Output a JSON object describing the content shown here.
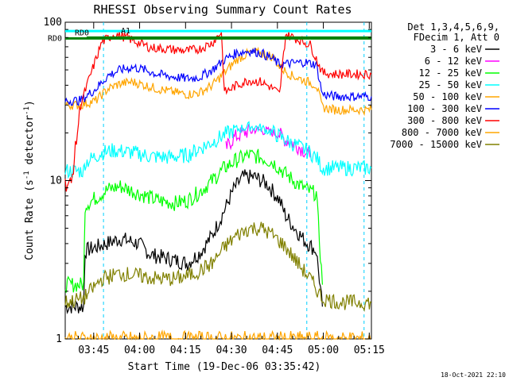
{
  "chart_data": {
    "type": "line",
    "title": "RHESSI Observing Summary Count Rates",
    "xlabel": "Start Time (19-Dec-06 03:35:42)",
    "ylabel_main": "Count Rate (s",
    "ylabel_sup1": "-1",
    "ylabel_mid": " detector",
    "ylabel_sup2": "-1",
    "ylabel_end": ")",
    "y_scale": "log",
    "ylim": [
      1,
      100
    ],
    "y_ticks": [
      "1",
      "10",
      "100"
    ],
    "xlim_minutes": [
      0,
      100
    ],
    "x_ticks": [
      {
        "label": "03:45",
        "minutes": 9.3
      },
      {
        "label": "04:00",
        "minutes": 24.3
      },
      {
        "label": "04:15",
        "minutes": 39.3
      },
      {
        "label": "04:30",
        "minutes": 54.3
      },
      {
        "label": "04:45",
        "minutes": 69.3
      },
      {
        "label": "05:00",
        "minutes": 84.3
      },
      {
        "label": "05:15",
        "minutes": 99.3
      }
    ],
    "legend_header": [
      "Det 1,3,4,5,6,9,",
      "FDecim 1, Att 0"
    ],
    "legend_placement": "right",
    "grid": false,
    "attenuator_labels": [
      "RD0",
      "RD0",
      "A1"
    ],
    "timestamp": "18-Oct-2021 22:10",
    "series": [
      {
        "name": "3 - 6 keV",
        "color": "#000000",
        "x": [
          0,
          6,
          6.5,
          15,
          18,
          24,
          28,
          34,
          40,
          44,
          48,
          52,
          55,
          58,
          62,
          66,
          70,
          72,
          75,
          78,
          82,
          84
        ],
        "y": [
          1.6,
          1.6,
          3.6,
          4.1,
          4.3,
          4.0,
          3.4,
          3.2,
          3.0,
          3.5,
          4.5,
          6.5,
          8.8,
          10.5,
          10.5,
          9.5,
          7.5,
          6.0,
          5.0,
          4.2,
          3.6,
          1.6
        ]
      },
      {
        "name": "6 - 12 keV",
        "color": "#ff00ff",
        "x": [
          52.5,
          55,
          58,
          62,
          66,
          70,
          72,
          75,
          78,
          80
        ],
        "y": [
          16,
          18.5,
          20,
          21,
          20.5,
          19.5,
          18,
          17,
          15.5,
          14
        ]
      },
      {
        "name": "12 - 25 keV",
        "color": "#00ff00",
        "x": [
          0,
          6,
          6.5,
          14,
          18,
          24,
          30,
          36,
          40,
          44,
          48,
          52,
          56,
          60,
          64,
          68,
          72,
          76,
          80,
          82,
          84
        ],
        "y": [
          2.2,
          2.2,
          7.0,
          8.8,
          9.2,
          8.3,
          7.5,
          7.2,
          7.5,
          8.5,
          10,
          12,
          13.5,
          14.5,
          14,
          13,
          11,
          9.5,
          8.5,
          8.3,
          2.2
        ]
      },
      {
        "name": "25 - 50 keV",
        "color": "#00ffff",
        "x": [
          0,
          6,
          6.5,
          12,
          16,
          22,
          28,
          34,
          40,
          44,
          48,
          52,
          56,
          60,
          64,
          68,
          72,
          76,
          80,
          82,
          84,
          88,
          92,
          100
        ],
        "y": [
          11.5,
          11.5,
          13,
          15,
          15.5,
          15,
          14.2,
          14,
          14.5,
          16,
          17.5,
          19.5,
          21,
          22,
          21.5,
          20,
          18,
          16.5,
          15,
          14,
          12,
          12,
          12,
          12
        ]
      },
      {
        "name": "50 - 100 keV",
        "color": "#ffa500",
        "x": [
          0,
          5,
          10,
          14,
          18,
          22,
          26,
          30,
          36,
          40,
          44,
          48,
          52,
          56,
          60,
          64,
          68,
          70,
          74,
          78,
          82,
          84,
          88,
          92,
          100
        ],
        "y": [
          30,
          30,
          32,
          38,
          41,
          42,
          40,
          38,
          36,
          35,
          36,
          40,
          48,
          58,
          64,
          64,
          60,
          52,
          46,
          43,
          40,
          29,
          28,
          28,
          28
        ]
      },
      {
        "name": "100 - 300 keV",
        "color": "#0000ff",
        "x": [
          0,
          5,
          10,
          14,
          18,
          22,
          26,
          30,
          36,
          40,
          44,
          48,
          52,
          56,
          60,
          64,
          68,
          70,
          74,
          78,
          82,
          84,
          88,
          92,
          100
        ],
        "y": [
          32,
          32,
          38,
          46,
          50,
          52,
          50,
          47,
          45,
          44,
          45,
          50,
          58,
          64,
          66,
          64,
          58,
          54,
          55,
          56,
          54,
          35,
          34,
          34,
          34
        ]
      },
      {
        "name": "300 - 800 keV",
        "color": "#ff0000",
        "x": [
          0,
          2,
          5,
          8,
          12,
          16,
          20,
          24,
          28,
          32,
          36,
          40,
          44,
          48,
          51,
          52,
          56,
          60,
          64,
          68,
          70,
          72,
          76,
          80,
          84,
          88,
          92,
          100
        ],
        "y": [
          9.5,
          9.5,
          30,
          45,
          75,
          84,
          80,
          74,
          69,
          68,
          67,
          66,
          68,
          74,
          87,
          36,
          40,
          43,
          42,
          38,
          35,
          84,
          78,
          72,
          48,
          47,
          47,
          47
        ]
      },
      {
        "name": "800 - 7000 keV",
        "color": "#ffa500",
        "x": [
          0,
          100
        ],
        "y": [
          1.0,
          1.0
        ]
      },
      {
        "name": "7000 - 15000 keV",
        "color": "#808000",
        "x": [
          0,
          6,
          12,
          18,
          24,
          30,
          36,
          40,
          44,
          48,
          52,
          56,
          60,
          64,
          68,
          72,
          76,
          80,
          84,
          90,
          100
        ],
        "y": [
          1.7,
          1.8,
          2.4,
          2.6,
          2.5,
          2.4,
          2.4,
          2.5,
          2.7,
          3.0,
          3.8,
          4.5,
          5.0,
          5.0,
          4.5,
          3.8,
          3.0,
          2.4,
          1.8,
          1.7,
          1.7
        ]
      }
    ],
    "vlines_minutes": [
      12.5,
      78.9,
      97.6
    ],
    "attenuator_bars": [
      {
        "label": "RD0",
        "color": "#008000",
        "x": [
          0,
          100
        ],
        "y": 79
      },
      {
        "label": "RD0",
        "color": "#008000",
        "x": [
          7,
          100
        ],
        "y": 80
      },
      {
        "label": "A1",
        "color": "#00ffff",
        "x": [
          0,
          100
        ],
        "y": 88
      }
    ]
  }
}
